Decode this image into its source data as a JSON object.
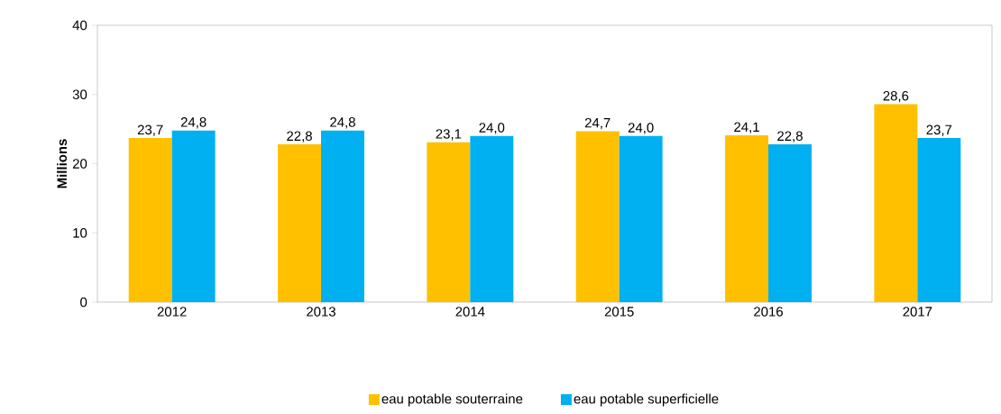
{
  "chart_data": {
    "type": "bar",
    "ylabel": "Millions",
    "categories": [
      "2012",
      "2013",
      "2014",
      "2015",
      "2016",
      "2017"
    ],
    "series": [
      {
        "name": "eau potable souterraine",
        "color": "#ffc000",
        "values": [
          23.7,
          22.8,
          23.1,
          24.7,
          24.1,
          28.6
        ],
        "value_labels": [
          "23,7",
          "22,8",
          "23,1",
          "24,7",
          "24,1",
          "28,6"
        ]
      },
      {
        "name": "eau potable superficielle",
        "color": "#00b0f0",
        "values": [
          24.8,
          24.8,
          24.0,
          24.0,
          22.8,
          23.7
        ],
        "value_labels": [
          "24,8",
          "24,8",
          "24,0",
          "24,0",
          "22,8",
          "23,7"
        ]
      }
    ],
    "ylim": [
      0,
      40
    ],
    "yticks": [
      0,
      10,
      20,
      30,
      40
    ],
    "legend": "bottom"
  }
}
